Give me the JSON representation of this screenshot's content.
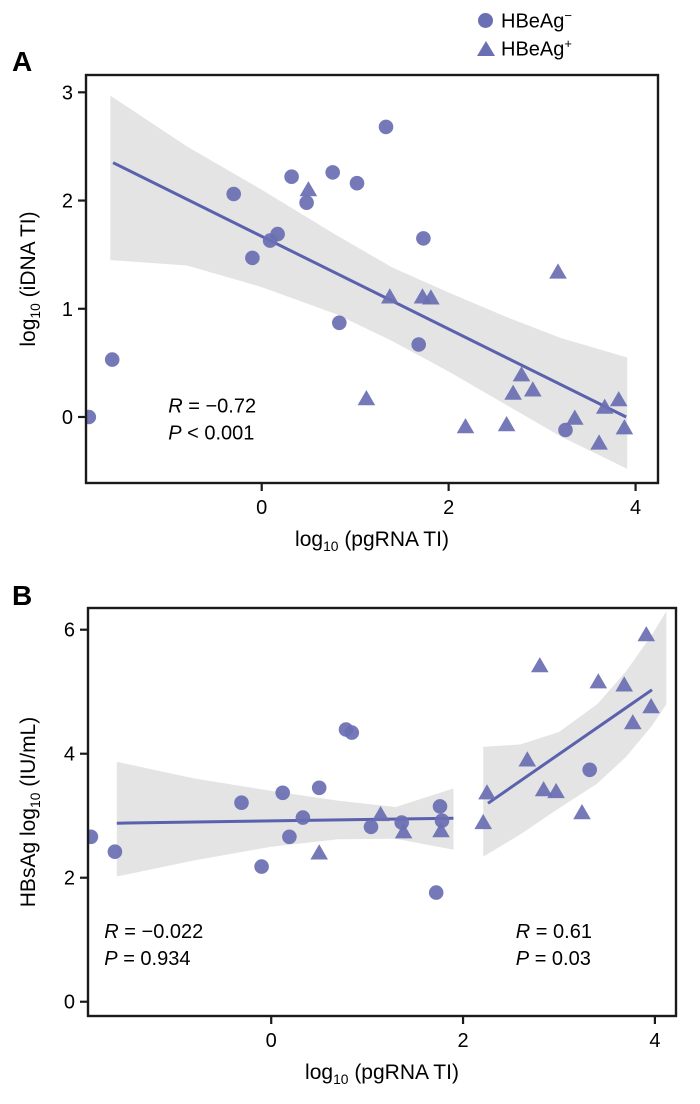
{
  "colors": {
    "marker": "#6a6fb3",
    "line": "#5a61ad",
    "band": "#e3e3e3",
    "frame": "#1a1a1a"
  },
  "legend": {
    "items": [
      {
        "marker": "circle",
        "label": "HBeAg",
        "sup": "−"
      },
      {
        "marker": "triangle",
        "label": "HBeAg",
        "sup": "+"
      }
    ]
  },
  "chart_data": [
    {
      "panel_label": "A",
      "type": "scatter",
      "xlabel": {
        "pre": "log",
        "sub": "10",
        "post": " (pgRNA TI)"
      },
      "ylabel": {
        "pre": "log",
        "sub": "10",
        "post": " (iDNA TI)"
      },
      "xlim": [
        -1.88,
        4.24
      ],
      "ylim": [
        -0.61,
        3.16
      ],
      "xticks": [
        0,
        2,
        4
      ],
      "yticks": [
        0,
        1,
        2,
        3
      ],
      "grid": false,
      "series": [
        {
          "name": "HBeAg−",
          "marker": "circle",
          "points": [
            [
              -1.85,
              0.0
            ],
            [
              -1.6,
              0.53
            ],
            [
              -0.3,
              2.06
            ],
            [
              -0.1,
              1.47
            ],
            [
              0.09,
              1.63
            ],
            [
              0.17,
              1.69
            ],
            [
              0.32,
              2.22
            ],
            [
              0.48,
              1.98
            ],
            [
              0.76,
              2.26
            ],
            [
              1.02,
              2.16
            ],
            [
              1.33,
              2.68
            ],
            [
              0.83,
              0.87
            ],
            [
              1.68,
              0.67
            ],
            [
              1.73,
              1.65
            ],
            [
              3.25,
              -0.12
            ]
          ]
        },
        {
          "name": "HBeAg+",
          "marker": "triangle",
          "points": [
            [
              0.5,
              2.1
            ],
            [
              1.12,
              0.17
            ],
            [
              1.37,
              1.11
            ],
            [
              1.72,
              1.11
            ],
            [
              1.81,
              1.1
            ],
            [
              2.18,
              -0.09
            ],
            [
              2.62,
              -0.07
            ],
            [
              2.69,
              0.22
            ],
            [
              2.78,
              0.39
            ],
            [
              2.9,
              0.25
            ],
            [
              3.17,
              1.34
            ],
            [
              3.35,
              -0.01
            ],
            [
              3.61,
              -0.24
            ],
            [
              3.67,
              0.09
            ],
            [
              3.82,
              0.16
            ],
            [
              3.88,
              -0.1
            ]
          ]
        }
      ],
      "fits": [
        {
          "line": [
            [
              -1.59,
              2.35
            ],
            [
              3.9,
              0.0
            ]
          ],
          "band_top": [
            [
              -1.62,
              2.97
            ],
            [
              -0.8,
              2.5
            ],
            [
              0,
              2.1
            ],
            [
              0.8,
              1.68
            ],
            [
              1.4,
              1.38
            ],
            [
              2.0,
              1.15
            ],
            [
              2.6,
              0.93
            ],
            [
              3.2,
              0.73
            ],
            [
              3.91,
              0.55
            ]
          ],
          "band_bottom": [
            [
              -1.62,
              1.45
            ],
            [
              -0.8,
              1.4
            ],
            [
              0,
              1.2
            ],
            [
              0.8,
              0.95
            ],
            [
              1.4,
              0.7
            ],
            [
              2.0,
              0.42
            ],
            [
              2.6,
              0.12
            ],
            [
              3.2,
              -0.18
            ],
            [
              3.91,
              -0.48
            ]
          ]
        }
      ],
      "annotations": [
        {
          "x": -1.0,
          "y": 0.04,
          "lines": [
            {
              "i": "R",
              "t": " = −0.72"
            },
            {
              "i": "P",
              "t": " < 0.001"
            }
          ]
        }
      ]
    },
    {
      "panel_label": "B",
      "type": "scatter",
      "xlabel": {
        "pre": "log",
        "sub": "10",
        "post": " (pgRNA TI)"
      },
      "ylabel": {
        "pre": "HBsAg log",
        "sub": "10",
        "post": " (IU/mL)"
      },
      "xlim": [
        -1.91,
        4.22
      ],
      "ylim": [
        -0.23,
        6.35
      ],
      "xticks": [
        0,
        2,
        4
      ],
      "yticks": [
        0,
        2,
        4,
        6
      ],
      "grid": false,
      "series": [
        {
          "name": "HBeAg−",
          "marker": "circle",
          "points": [
            [
              -1.88,
              2.66
            ],
            [
              -1.63,
              2.42
            ],
            [
              -0.31,
              3.21
            ],
            [
              -0.1,
              2.18
            ],
            [
              0.12,
              3.37
            ],
            [
              0.19,
              2.66
            ],
            [
              0.33,
              2.97
            ],
            [
              0.5,
              3.45
            ],
            [
              0.78,
              4.39
            ],
            [
              0.84,
              4.34
            ],
            [
              1.04,
              2.82
            ],
            [
              1.36,
              2.89
            ],
            [
              1.72,
              1.76
            ],
            [
              1.76,
              3.15
            ],
            [
              1.78,
              2.92
            ],
            [
              3.32,
              3.74
            ]
          ]
        },
        {
          "name": "HBeAg+",
          "marker": "triangle",
          "points": [
            [
              0.5,
              2.4
            ],
            [
              1.14,
              3.02
            ],
            [
              1.38,
              2.74
            ],
            [
              1.77,
              2.76
            ],
            [
              2.21,
              2.89
            ],
            [
              2.25,
              3.37
            ],
            [
              2.67,
              3.9
            ],
            [
              2.8,
              5.42
            ],
            [
              2.84,
              3.42
            ],
            [
              2.97,
              3.39
            ],
            [
              3.24,
              3.05
            ],
            [
              3.41,
              5.16
            ],
            [
              3.68,
              5.11
            ],
            [
              3.77,
              4.5
            ],
            [
              3.91,
              5.92
            ],
            [
              3.96,
              4.76
            ]
          ]
        }
      ],
      "fits": [
        {
          "line": [
            [
              -1.61,
              2.88
            ],
            [
              1.9,
              2.96
            ]
          ],
          "band_top": [
            [
              -1.61,
              3.87
            ],
            [
              -0.8,
              3.6
            ],
            [
              0,
              3.4
            ],
            [
              0.7,
              3.24
            ],
            [
              1.3,
              3.14
            ],
            [
              1.9,
              3.44
            ]
          ],
          "band_bottom": [
            [
              -1.61,
              2.02
            ],
            [
              -0.8,
              2.28
            ],
            [
              0,
              2.5
            ],
            [
              0.7,
              2.62
            ],
            [
              1.3,
              2.63
            ],
            [
              1.9,
              2.45
            ]
          ]
        },
        {
          "line": [
            [
              2.26,
              3.2
            ],
            [
              3.97,
              5.03
            ]
          ],
          "band_top": [
            [
              2.21,
              4.11
            ],
            [
              2.6,
              4.15
            ],
            [
              3.0,
              4.35
            ],
            [
              3.4,
              4.8
            ],
            [
              3.7,
              5.33
            ],
            [
              3.97,
              5.92
            ],
            [
              4.12,
              6.3
            ]
          ],
          "band_bottom": [
            [
              2.21,
              2.34
            ],
            [
              2.6,
              2.7
            ],
            [
              3.0,
              3.12
            ],
            [
              3.4,
              3.52
            ],
            [
              3.7,
              3.95
            ],
            [
              3.97,
              4.45
            ],
            [
              4.12,
              4.8
            ]
          ]
        }
      ],
      "annotations": [
        {
          "x": -1.74,
          "y": 1.03,
          "lines": [
            {
              "i": "R",
              "t": " = −0.022"
            },
            {
              "i": "P",
              "t": " = 0.934"
            }
          ]
        },
        {
          "x": 2.55,
          "y": 1.03,
          "lines": [
            {
              "i": "R",
              "t": " = 0.61"
            },
            {
              "i": "P",
              "t": " = 0.03"
            }
          ]
        }
      ]
    }
  ]
}
